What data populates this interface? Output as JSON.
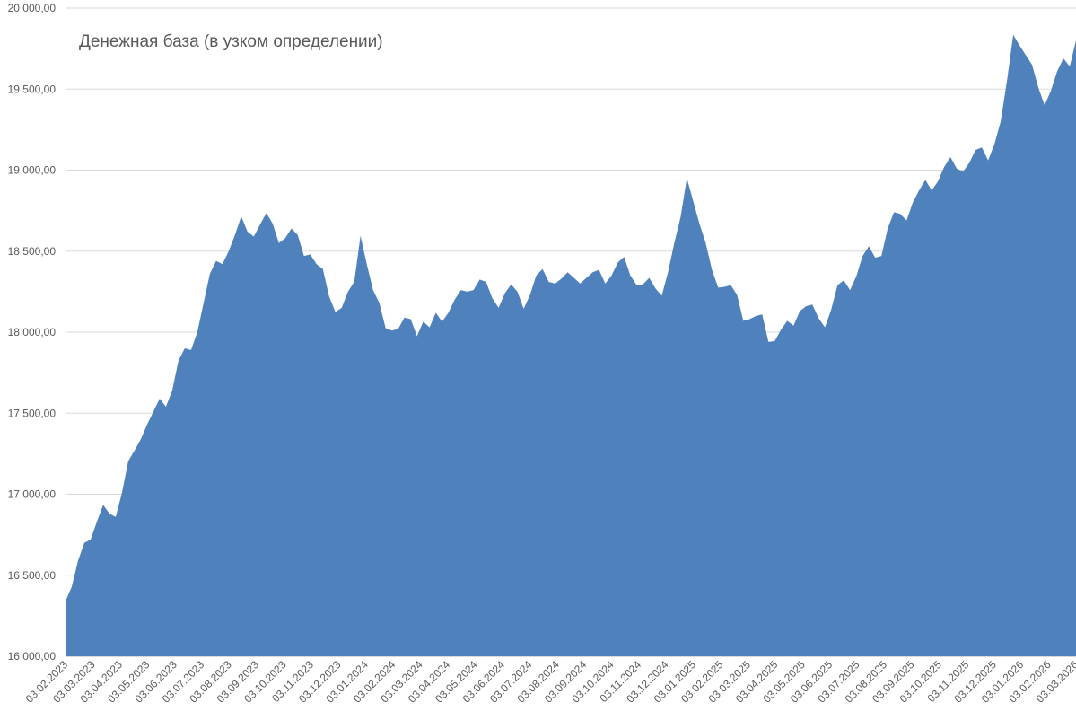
{
  "chart_data": {
    "type": "area",
    "title": "Денежная база (в узком определении)",
    "xlabel": "",
    "ylabel": "",
    "ylim": [
      16000,
      20000
    ],
    "y_ticks": [
      16000,
      16500,
      17000,
      17500,
      18000,
      18500,
      19000,
      19500,
      20000
    ],
    "y_tick_labels": [
      "16 000,00",
      "16 500,00",
      "17 000,00",
      "17 500,00",
      "18 000,00",
      "18 500,00",
      "19 000,00",
      "19 500,00",
      "20 000,00"
    ],
    "grid": "horizontal",
    "legend": "none",
    "x_tick_labels": [
      "03.02.2023",
      "03.03.2023",
      "03.04.2023",
      "03.05.2023",
      "03.06.2023",
      "03.07.2023",
      "03.08.2023",
      "03.09.2023",
      "03.10.2023",
      "03.11.2023",
      "03.12.2023",
      "03.01.2024",
      "03.02.2024",
      "03.03.2024",
      "03.04.2024",
      "03.05.2024",
      "03.06.2024",
      "03.07.2024",
      "03.08.2024",
      "03.09.2024",
      "03.10.2024",
      "03.11.2024",
      "03.12.2024",
      "03.01.2025",
      "03.02.2025",
      "03.03.2025",
      "03.04.2025",
      "03.05.2025",
      "03.06.2025",
      "03.07.2025",
      "03.08.2025",
      "03.09.2025",
      "03.10.2025",
      "03.11.2025",
      "03.12.2025",
      "03.01.2026",
      "03.02.2026",
      "03.03.2026"
    ],
    "series_color": "#4f81bd",
    "series": [
      {
        "values": [
          16340,
          16430,
          16590,
          16700,
          16720,
          16830,
          16935,
          16880,
          16860,
          17010,
          17205,
          17270,
          17340,
          17430,
          17510,
          17590,
          17540,
          17640,
          17825,
          17900,
          17890,
          18000,
          18180,
          18360,
          18440,
          18420,
          18500,
          18600,
          18715,
          18620,
          18590,
          18665,
          18735,
          18670,
          18550,
          18580,
          18640,
          18600,
          18470,
          18480,
          18420,
          18390,
          18220,
          18125,
          18150,
          18250,
          18310,
          18595,
          18420,
          18260,
          18180,
          18025,
          18010,
          18020,
          18090,
          18080,
          17975,
          18065,
          18030,
          18120,
          18065,
          18120,
          18200,
          18260,
          18250,
          18260,
          18325,
          18310,
          18210,
          18150,
          18240,
          18295,
          18250,
          18145,
          18230,
          18350,
          18390,
          18310,
          18300,
          18330,
          18370,
          18335,
          18300,
          18335,
          18370,
          18385,
          18300,
          18350,
          18430,
          18465,
          18350,
          18290,
          18295,
          18335,
          18270,
          18225,
          18370,
          18550,
          18710,
          18950,
          18810,
          18670,
          18550,
          18385,
          18275,
          18280,
          18290,
          18230,
          18070,
          18080,
          18100,
          18110,
          17940,
          17945,
          18015,
          18070,
          18040,
          18130,
          18160,
          18170,
          18085,
          18030,
          18140,
          18290,
          18320,
          18260,
          18345,
          18470,
          18530,
          18460,
          18470,
          18640,
          18740,
          18730,
          18690,
          18800,
          18875,
          18940,
          18875,
          18930,
          19020,
          19080,
          19010,
          18990,
          19045,
          19125,
          19140,
          19060,
          19160,
          19300,
          19550,
          19835,
          19770,
          19710,
          19650,
          19510,
          19400,
          19490,
          19610,
          19690,
          19640,
          19800
        ]
      }
    ]
  }
}
